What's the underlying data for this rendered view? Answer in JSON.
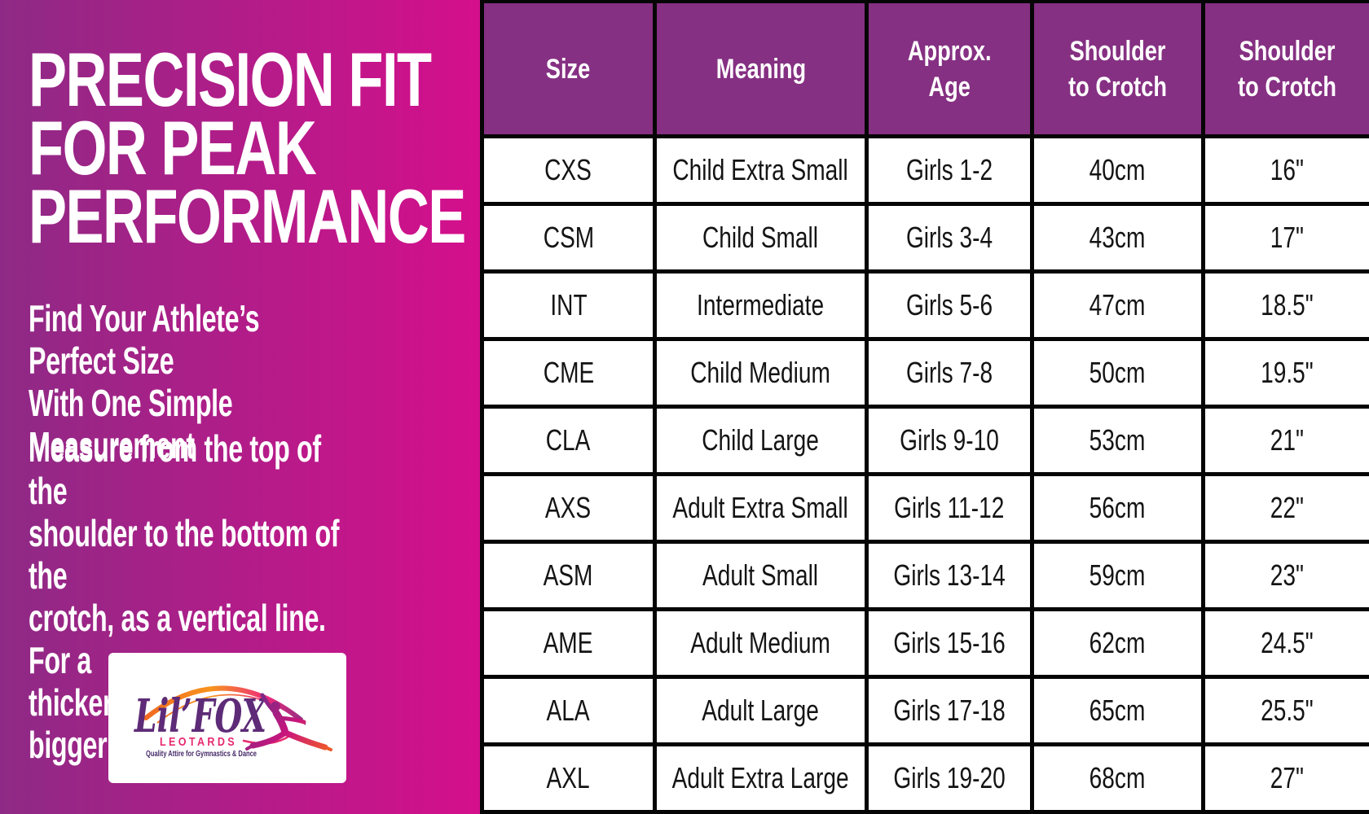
{
  "left_panel": {
    "heading": "PRECISION FIT\nFOR PEAK\nPERFORMANCE",
    "subheading": "Find Your Athlete’s Perfect Size\nWith One Simple Measurement",
    "instructions": "Measure from the top of the\nshoulder to the bottom of the\ncrotch, as a vertical line. For a\nthicker build, order a size bigger!",
    "logo": {
      "brand": "Lil’FOX",
      "sub_brand": "LEOTARDS",
      "tagline": "Quality Attire for Gymnastics & Dance"
    }
  },
  "chart_data": {
    "type": "table",
    "title": "PRECISION FIT FOR PEAK PERFORMANCE",
    "columns": [
      "Size",
      "Meaning",
      "Approx.\nAge",
      "Shoulder\nto Crotch",
      "Shoulder\nto Crotch"
    ],
    "column_keys": [
      "size",
      "meaning",
      "age",
      "shoulder-to-crotch-cm",
      "shoulder-to-crotch-in"
    ],
    "rows": [
      [
        "CXS",
        "Child Extra Small",
        "Girls 1-2",
        "40cm",
        "16\""
      ],
      [
        "CSM",
        "Child Small",
        "Girls 3-4",
        "43cm",
        "17\""
      ],
      [
        "INT",
        "Intermediate",
        "Girls 5-6",
        "47cm",
        "18.5\""
      ],
      [
        "CME",
        "Child Medium",
        "Girls 7-8",
        "50cm",
        "19.5\""
      ],
      [
        "CLA",
        "Child Large",
        "Girls 9-10",
        "53cm",
        "21\""
      ],
      [
        "AXS",
        "Adult Extra Small",
        "Girls 11-12",
        "56cm",
        "22\""
      ],
      [
        "ASM",
        "Adult Small",
        "Girls 13-14",
        "59cm",
        "23\""
      ],
      [
        "AME",
        "Adult Medium",
        "Girls 15-16",
        "62cm",
        "24.5\""
      ],
      [
        "ALA",
        "Adult Large",
        "Girls 17-18",
        "65cm",
        "25.5\""
      ],
      [
        "AXL",
        "Adult Extra Large",
        "Girls 19-20",
        "68cm",
        "27\""
      ]
    ]
  },
  "colors": {
    "panel_gradient_from": "#8E2A85",
    "panel_gradient_to": "#D50F8C",
    "table_header_bg": "#853082",
    "table_border": "#050505",
    "brand_purple": "#5D2B77",
    "brand_pink": "#E72A6F",
    "brand_orange": "#F7941D",
    "tagline_purple": "#452A68"
  }
}
